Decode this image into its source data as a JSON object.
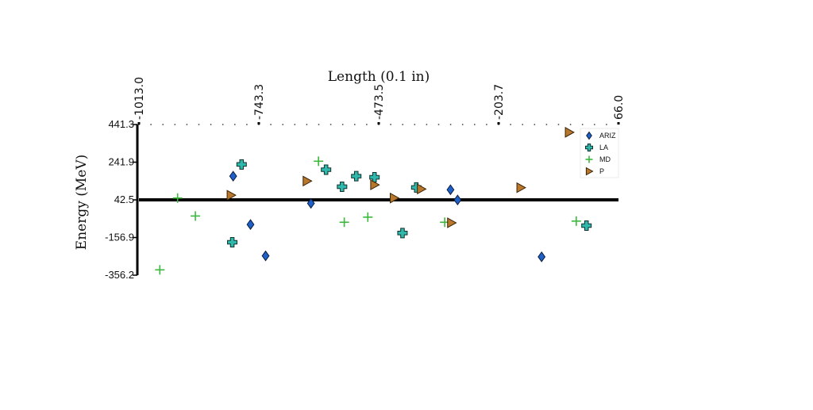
{
  "chart_data": {
    "type": "scatter",
    "title": "",
    "xlabel": "Length (0.1 in)",
    "ylabel": "Energy (MeV)",
    "xlim": [
      -1013.0,
      66.0
    ],
    "ylim": [
      -356.2,
      441.3
    ],
    "x_ticks": [
      "-1013.0",
      "-743.3",
      "-473.5",
      "-203.7",
      "66.0"
    ],
    "y_ticks": [
      "441.3",
      "241.9",
      "42.5",
      "-156.9",
      "-356.2"
    ],
    "x_tick_values": [
      -1013.0,
      -743.3,
      -473.5,
      -203.7,
      66.0
    ],
    "y_tick_values": [
      441.3,
      241.9,
      42.5,
      -156.9,
      -356.2
    ],
    "x_axis_position": "top",
    "reference_line_y": 42.5,
    "grid": false,
    "legend_position": "top-right",
    "series": [
      {
        "name": "ARIZ",
        "marker": "diamond",
        "color": "#1f5fc8",
        "points": [
          {
            "x": -801,
            "y": 168
          },
          {
            "x": -762,
            "y": -88
          },
          {
            "x": -728,
            "y": -254
          },
          {
            "x": -626,
            "y": 24
          },
          {
            "x": -312,
            "y": 96
          },
          {
            "x": -296,
            "y": 42
          },
          {
            "x": -107,
            "y": -259
          }
        ]
      },
      {
        "name": "LA",
        "marker": "thick-plus",
        "color": "#2fb8ac",
        "points": [
          {
            "x": -782,
            "y": 230
          },
          {
            "x": -803,
            "y": -182
          },
          {
            "x": -592,
            "y": 202
          },
          {
            "x": -556,
            "y": 112
          },
          {
            "x": -524,
            "y": 168
          },
          {
            "x": -483,
            "y": 162
          },
          {
            "x": -420,
            "y": -133
          },
          {
            "x": -389,
            "y": 108
          },
          {
            "x": -6,
            "y": -94
          }
        ]
      },
      {
        "name": "MD",
        "marker": "plus",
        "color": "#3cb83c",
        "points": [
          {
            "x": -926,
            "y": 52
          },
          {
            "x": -886,
            "y": -43
          },
          {
            "x": -966,
            "y": -328
          },
          {
            "x": -609,
            "y": 247
          },
          {
            "x": -551,
            "y": -76
          },
          {
            "x": -498,
            "y": -49
          },
          {
            "x": -325,
            "y": -76
          },
          {
            "x": -29,
            "y": -70
          }
        ]
      },
      {
        "name": "P",
        "marker": "triangle-right",
        "color": "#b8772a",
        "points": [
          {
            "x": -806,
            "y": 67
          },
          {
            "x": -635,
            "y": 142
          },
          {
            "x": -483,
            "y": 122
          },
          {
            "x": -439,
            "y": 52
          },
          {
            "x": -378,
            "y": 100
          },
          {
            "x": -310,
            "y": -79
          },
          {
            "x": -154,
            "y": 107
          },
          {
            "x": -45,
            "y": 400
          }
        ]
      }
    ]
  }
}
